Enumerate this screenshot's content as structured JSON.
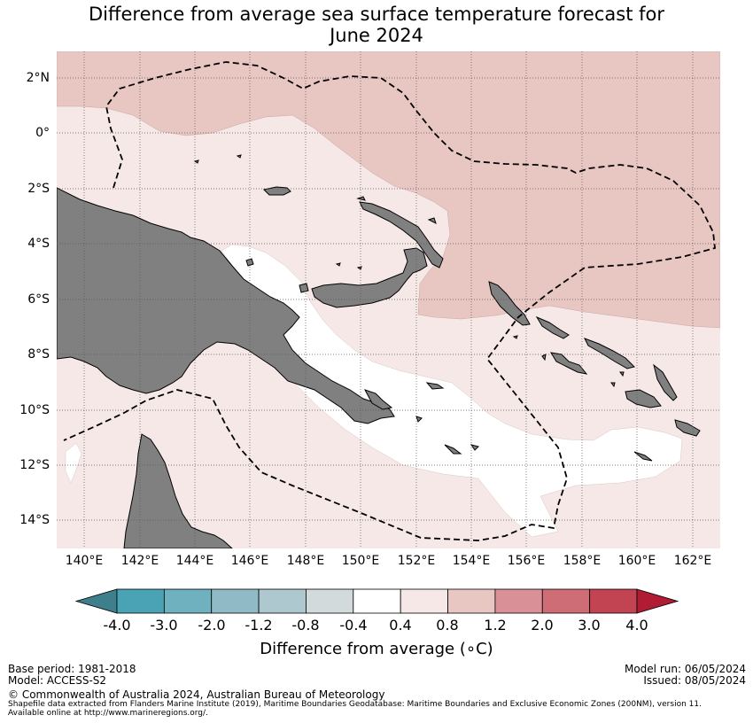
{
  "title": {
    "line1": "Difference from average sea surface temperature forecast for",
    "line2": "June 2024"
  },
  "map": {
    "lat_labels": [
      "2°N",
      "0°",
      "2°S",
      "4°S",
      "6°S",
      "8°S",
      "10°S",
      "12°S",
      "14°S"
    ],
    "lon_labels": [
      "140°E",
      "142°E",
      "144°E",
      "146°E",
      "148°E",
      "150°E",
      "152°E",
      "154°E",
      "156°E",
      "158°E",
      "160°E",
      "162°E"
    ],
    "extent": {
      "lon": [
        139,
        163
      ],
      "lat": [
        -15,
        3
      ]
    },
    "land_color": "#808080",
    "boundary_style": "dashed"
  },
  "colorbar": {
    "ticks": [
      "-4.0",
      "-3.0",
      "-2.0",
      "-1.2",
      "-0.8",
      "-0.4",
      "0.4",
      "0.8",
      "1.2",
      "2.0",
      "3.0",
      "4.0"
    ],
    "colors": [
      "#3d7f8a",
      "#4aa3b4",
      "#6fb1be",
      "#8fbac6",
      "#adc9cf",
      "#d2dadc",
      "#ffffff",
      "#f5e8e6",
      "#e8c7c2",
      "#d99096",
      "#ce6d76",
      "#c24352",
      "#b01c34"
    ],
    "label": "Difference from average (∘C)"
  },
  "footer": {
    "base_period": "Base period: 1981-2018",
    "model": "Model: ACCESS-S2",
    "model_run": "Model run: 06/05/2024",
    "issued": "Issued: 08/05/2024",
    "copyright": "© Commonwealth of Australia 2024, Australian Bureau of Meteorology",
    "source_line1": "Shapefile data extracted from Flanders Marine Institute (2019), Maritime Boundaries Geodatabase: Maritime Boundaries and Exclusive Economic Zones (200NM), version 11.",
    "source_line2": "Available online at http://www.marineregions.org/."
  }
}
